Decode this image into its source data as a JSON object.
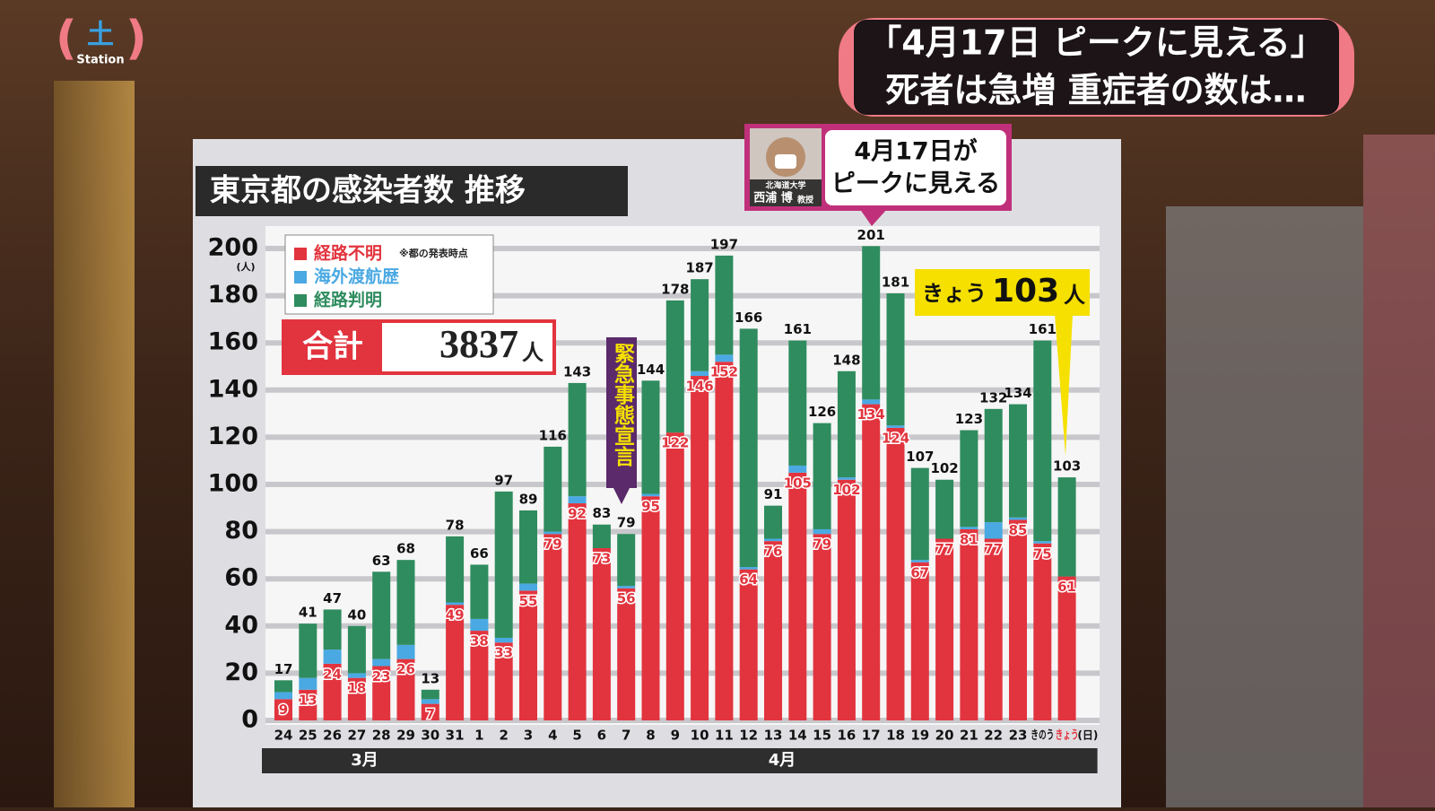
{
  "header": {
    "badge": "土",
    "station": "Station",
    "headline_1": "「4月17日 ピークに見える」",
    "headline_2": "死者は急増 重症者の数は…"
  },
  "expert": {
    "affiliation": "北海道大学",
    "name": "西浦 博",
    "position": "教授",
    "quote_1": "4月17日が",
    "quote_2": "ピークに見える"
  },
  "chart_data": {
    "type": "stacked_bar",
    "title": "東京都の感染者数 推移",
    "y_unit": "(人)",
    "x_unit": "(日)",
    "note": "※都の発表時点",
    "sum_label": "合計",
    "sum_value": "3837",
    "sum_unit": "人",
    "declaration": "緊急事態宣言",
    "today_callout": {
      "text": "きょう",
      "value": 103,
      "unit": "人"
    },
    "month_labels": [
      "3月",
      "4月"
    ],
    "categories": [
      "24",
      "25",
      "26",
      "27",
      "28",
      "29",
      "30",
      "31",
      "1",
      "2",
      "3",
      "4",
      "5",
      "6",
      "7",
      "8",
      "9",
      "10",
      "11",
      "12",
      "13",
      "14",
      "15",
      "16",
      "17",
      "18",
      "19",
      "20",
      "21",
      "22",
      "23",
      "きのう",
      "きょう"
    ],
    "totals": [
      17,
      41,
      47,
      40,
      63,
      68,
      13,
      78,
      66,
      97,
      89,
      116,
      143,
      83,
      79,
      144,
      178,
      187,
      197,
      166,
      91,
      161,
      126,
      148,
      201,
      181,
      107,
      102,
      123,
      132,
      134,
      161,
      103
    ],
    "series": [
      {
        "name": "経路不明",
        "color": "#e2343e",
        "values": [
          9,
          13,
          24,
          18,
          23,
          26,
          7,
          49,
          38,
          33,
          55,
          79,
          92,
          73,
          56,
          95,
          122,
          146,
          152,
          64,
          76,
          105,
          79,
          102,
          134,
          124,
          67,
          77,
          81,
          77,
          85,
          75,
          61
        ]
      },
      {
        "name": "海外渡航歴",
        "color": "#4aa9e2",
        "values": [
          3,
          5,
          6,
          2,
          3,
          6,
          2,
          1,
          5,
          2,
          3,
          1,
          3,
          0,
          1,
          1,
          0,
          2,
          3,
          1,
          1,
          3,
          2,
          1,
          2,
          1,
          1,
          0,
          1,
          7,
          1,
          1,
          0
        ]
      },
      {
        "name": "経路判明",
        "color": "#2f8c5e",
        "values": [
          5,
          23,
          17,
          20,
          37,
          36,
          4,
          28,
          23,
          62,
          31,
          36,
          48,
          10,
          22,
          48,
          56,
          39,
          42,
          101,
          14,
          53,
          45,
          45,
          65,
          56,
          39,
          25,
          41,
          48,
          48,
          85,
          42
        ]
      }
    ],
    "ylim": [
      0,
      200
    ],
    "yticks": [
      0,
      20,
      40,
      60,
      80,
      100,
      120,
      140,
      160,
      180,
      200
    ],
    "grid": true
  }
}
